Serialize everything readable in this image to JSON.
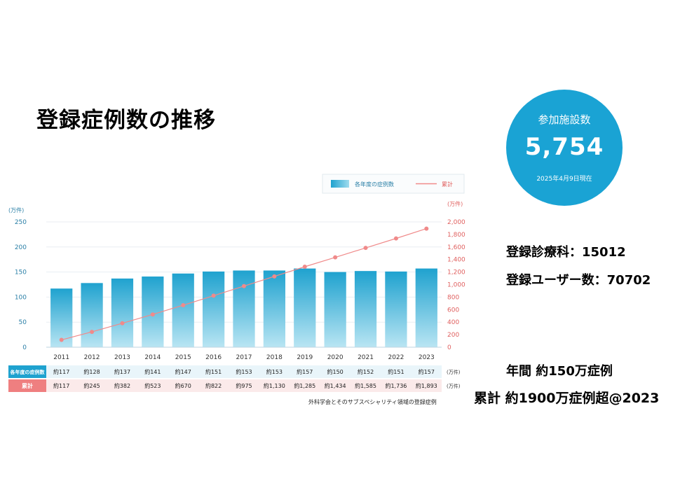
{
  "page": {
    "title": "登録症例数の推移",
    "facilities_label": "参加施設数",
    "facilities_value": "5,754",
    "facilities_note": "2025年4月9日現在",
    "dept_text": "登録診療科：15012",
    "users_text": "登録ユーザー数：70702",
    "annual_text": "年間 約150万症例",
    "cumulative_text": "累計 約1900万症例超@2023",
    "source_note": "外科学会とそのサブスペシャリティ領域の登録症例"
  },
  "chart_data": {
    "type": "bar",
    "categories": [
      "2011",
      "2012",
      "2013",
      "2014",
      "2015",
      "2016",
      "2017",
      "2018",
      "2019",
      "2020",
      "2021",
      "2022",
      "2023"
    ],
    "series": [
      {
        "name": "各年度の症例数",
        "type": "bar",
        "axis": "left",
        "color": "#3cb4d6",
        "values": [
          117,
          128,
          137,
          141,
          147,
          151,
          153,
          153,
          157,
          150,
          152,
          151,
          157
        ]
      },
      {
        "name": "累計",
        "type": "line",
        "axis": "right",
        "color": "#f08a8a",
        "values": [
          117,
          245,
          382,
          523,
          670,
          822,
          975,
          1130,
          1285,
          1434,
          1585,
          1736,
          1893
        ]
      }
    ],
    "left_axis": {
      "unit": "(万件)",
      "ylim": [
        0,
        250
      ],
      "ticks": [
        "0",
        "50",
        "100",
        "150",
        "200",
        "250"
      ]
    },
    "right_axis": {
      "unit": "(万件)",
      "ylim": [
        0,
        2000
      ],
      "ticks": [
        "0",
        "200",
        "400",
        "600",
        "800",
        "1,000",
        "1,200",
        "1,400",
        "1,600",
        "1,800",
        "2,000"
      ]
    },
    "legend": {
      "position": "top-right",
      "bar_label": "各年度の症例数",
      "line_label": "累計"
    },
    "grid": true,
    "table": {
      "row1_label": "各年度の症例数",
      "row1_values": [
        "約117",
        "約128",
        "約137",
        "約141",
        "約147",
        "約151",
        "約153",
        "約153",
        "約157",
        "約150",
        "約152",
        "約151",
        "約157"
      ],
      "row2_label": "累計",
      "row2_values": [
        "約117",
        "約245",
        "約382",
        "約523",
        "約670",
        "約822",
        "約975",
        "約1,130",
        "約1,285",
        "約1,434",
        "約1,585",
        "約1,736",
        "約1,893"
      ],
      "unit": "(万件)"
    }
  }
}
